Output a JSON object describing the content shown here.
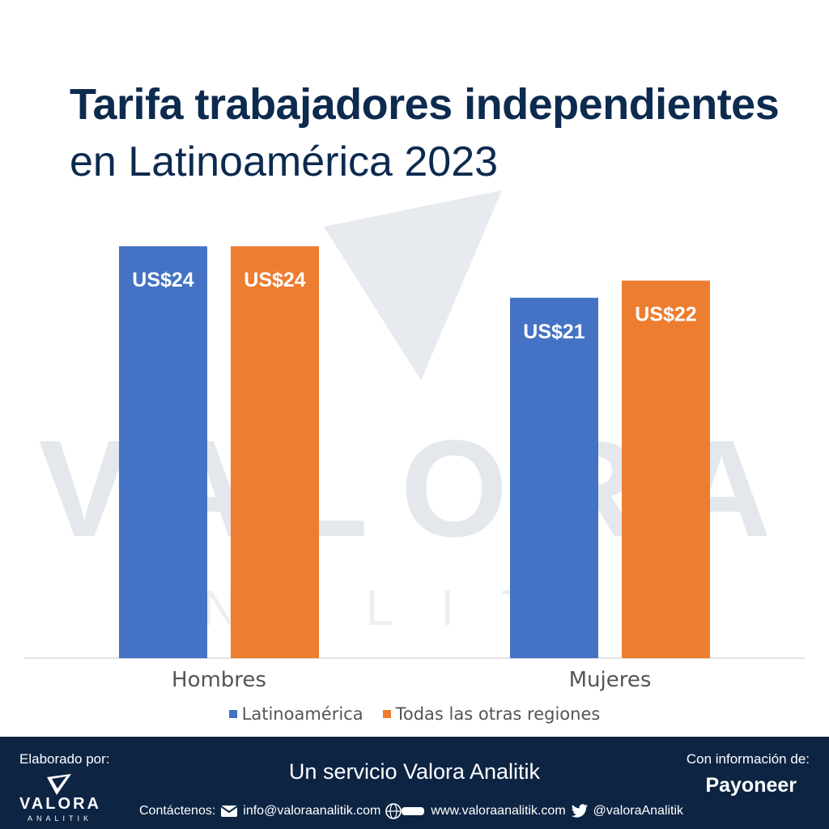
{
  "title_line1": "Tarifa trabajadores independientes",
  "title_line2": "en Latinoamérica 2023",
  "watermark": {
    "main": "VALORA",
    "sub": "ANALITIK"
  },
  "chart_data": {
    "type": "bar",
    "categories": [
      "Hombres",
      "Mujeres"
    ],
    "series": [
      {
        "name": "Latinoamérica",
        "values": [
          24,
          21
        ],
        "labels": [
          "US$24",
          "US$21"
        ],
        "color": "#4472c4"
      },
      {
        "name": "Todas las otras regiones",
        "values": [
          24,
          22
        ],
        "labels": [
          "US$24",
          "US$22"
        ],
        "color": "#ed7d31"
      }
    ],
    "title": "Tarifa trabajadores independientes en Latinoamérica 2023",
    "xlabel": "",
    "ylabel": "",
    "legend": "bottom",
    "grid": false
  },
  "footer": {
    "elaborado": "Elaborado por:",
    "logo_name": "VALORA",
    "logo_sub": "ANALITIK",
    "servicio": "Un servicio Valora Analitik",
    "con_info": "Con información de:",
    "source": "Payoneer",
    "contact_label": "Contáctenos:",
    "email": "info@valoraanalitik.com",
    "web": "www.valoraanalitik.com",
    "twitter": "@valoraAnalitik"
  }
}
